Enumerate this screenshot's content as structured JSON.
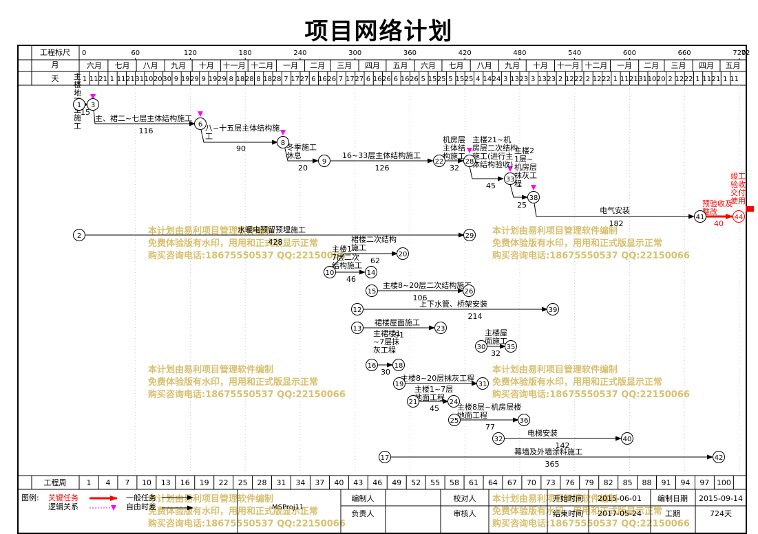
{
  "title": "项目网络计划",
  "header": {
    "scale_label": "工程标尺",
    "scale_ticks": [
      "0",
      "60",
      "120",
      "180",
      "240",
      "300",
      "360",
      "420",
      "480",
      "540",
      "600",
      "660",
      "720",
      "72"
    ],
    "month_label": "月",
    "months": [
      "六月",
      "七月",
      "八月",
      "九月",
      "十月",
      "十一月",
      "十二月",
      "一月",
      "二月",
      "三月",
      "四月",
      "五月",
      "六月",
      "七月",
      "八月",
      "九月",
      "十月",
      "十一月",
      "十二月",
      "一月",
      "二月",
      "三月",
      "四月",
      "五月"
    ],
    "day_label": "天",
    "days": [
      "1",
      "11",
      "21",
      "1",
      "11",
      "21",
      "31",
      "10",
      "20",
      "30",
      "9",
      "19",
      "29",
      "9",
      "19",
      "29",
      "8",
      "18",
      "28",
      "8",
      "18",
      "28",
      "7",
      "17",
      "27",
      "6",
      "16",
      "26",
      "7",
      "17",
      "27",
      "6",
      "16",
      "26",
      "6",
      "16",
      "26",
      "5",
      "15",
      "25",
      "5",
      "15",
      "25",
      "4",
      "14",
      "24",
      "3",
      "13",
      "23",
      "3",
      "13",
      "23",
      "2",
      "12",
      "22",
      "2",
      "12",
      "22",
      "1",
      "11",
      "21",
      "31",
      "10",
      "20",
      "2",
      "12",
      "22",
      "1",
      "11",
      "21",
      "1",
      "11"
    ],
    "week_label": "工程周",
    "weeks": [
      "1",
      "4",
      "7",
      "10",
      "13",
      "16",
      "19",
      "22",
      "25",
      "28",
      "31",
      "34",
      "37",
      "40",
      "43",
      "46",
      "49",
      "52",
      "55",
      "58",
      "61",
      "64",
      "67",
      "70",
      "73",
      "76",
      "79",
      "82",
      "85",
      "88",
      "91",
      "94",
      "97",
      "100"
    ]
  },
  "nodes": [
    "1",
    "3",
    "6",
    "8",
    "9",
    "22",
    "28",
    "33",
    "38",
    "41",
    "44",
    "2",
    "29",
    "20",
    "10",
    "14",
    "15",
    "26",
    "12",
    "39",
    "13",
    "23",
    "16",
    "18",
    "30",
    "35",
    "19",
    "31",
    "21",
    "24",
    "25",
    "36",
    "32",
    "40",
    "17",
    "42"
  ],
  "tasks": {
    "t1": {
      "name": "主楼地下室施工",
      "dur": "15"
    },
    "t2": {
      "name": "主、裙二~七层主体结构施工",
      "dur": "116"
    },
    "t3": {
      "name": "八~十五层主体结构施工",
      "dur": "90"
    },
    "t4": {
      "name": "冬季施工休息",
      "dur": "20"
    },
    "t5": {
      "name": "16~33层主体结构施工",
      "dur": "126"
    },
    "t6": {
      "name": "机房层主体结构施工",
      "dur": "32"
    },
    "t7": {
      "name": "主楼21~机房层二次结构施工(进行主体结构验收)",
      "dur": "45"
    },
    "t8": {
      "name": "主楼21层~机房层抹灰工程",
      "dur": "25"
    },
    "t9": {
      "name": "电气安装",
      "dur": "182"
    },
    "t10": {
      "name": "预验收及整改",
      "dur": "40"
    },
    "t11": {
      "name": "竣工验收交付使用"
    },
    "t12": {
      "name": "水暖电预留预埋施工",
      "dur": "428"
    },
    "t13": {
      "name": "裙楼二次结构施工",
      "dur": "62"
    },
    "t14": {
      "name": "主楼1~7层二次结构施工",
      "dur": "46"
    },
    "t15": {
      "name": "主楼8~20层二次结构施工",
      "dur": "106"
    },
    "t16": {
      "name": "上下水管、桥架安装",
      "dur": "214"
    },
    "t17": {
      "name": "裙楼屋面施工",
      "dur": "91"
    },
    "t18": {
      "name": "主裙楼1~7层抹灰工程",
      "dur": "30"
    },
    "t19": {
      "name": "主楼屋面施工",
      "dur": "32"
    },
    "t20": {
      "name": "主楼8~20层抹灰工程",
      "dur": ""
    },
    "t21": {
      "name": "主楼1~7层地面工程",
      "dur": "45"
    },
    "t22": {
      "name": "主楼8层~机房层楼地面工程",
      "dur": "77"
    },
    "t23": {
      "name": "电梯安装",
      "dur": "142"
    },
    "t24": {
      "name": "幕墙及外墙涂料施工",
      "dur": "365"
    }
  },
  "watermark": {
    "line1": "本计划由易利项目管理软件编制",
    "line2": "免费体验版有水印，用用和正式版显示正常",
    "line3": "购买咨询电话:18675550537 QQ:22150066"
  },
  "footer": {
    "legend_label": "图例:",
    "legend_critical": "关键任务",
    "legend_logic": "逻辑关系",
    "legend_normal": "一般任务",
    "legend_float": "自由时差",
    "software": "MSProj11",
    "editor_label": "编制人",
    "owner_label": "负责人",
    "checker_label": "校对人",
    "reviewer_label": "审核人",
    "start_label": "开始时间",
    "start_value": "2015-06-01",
    "end_label": "结束时间",
    "end_value": "2017-05-24",
    "date_label": "编制日期",
    "date_value": "2015-09-14",
    "period_label": "工期",
    "period_value": "724天"
  },
  "colors": {
    "critical": "#ff0000",
    "float": "#ff00ff",
    "watermark": "#d8c070"
  }
}
